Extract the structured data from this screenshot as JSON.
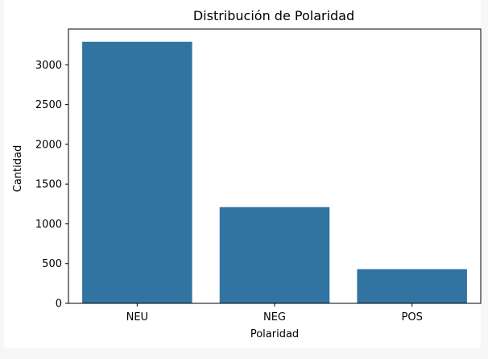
{
  "chart_data": {
    "type": "bar",
    "title": "Distribución de Polaridad",
    "xlabel": "Polaridad",
    "ylabel": "Cantidad",
    "categories": [
      "NEU",
      "NEG",
      "POS"
    ],
    "values": [
      3290,
      1210,
      430
    ],
    "ylim": [
      0,
      3450
    ],
    "yticks": [
      0,
      500,
      1000,
      1500,
      2000,
      2500,
      3000
    ],
    "grid": false,
    "colors": {
      "bar": "#3274a1",
      "figure_bg": "#ffffff",
      "page_bg": "#f7f7f8"
    }
  }
}
